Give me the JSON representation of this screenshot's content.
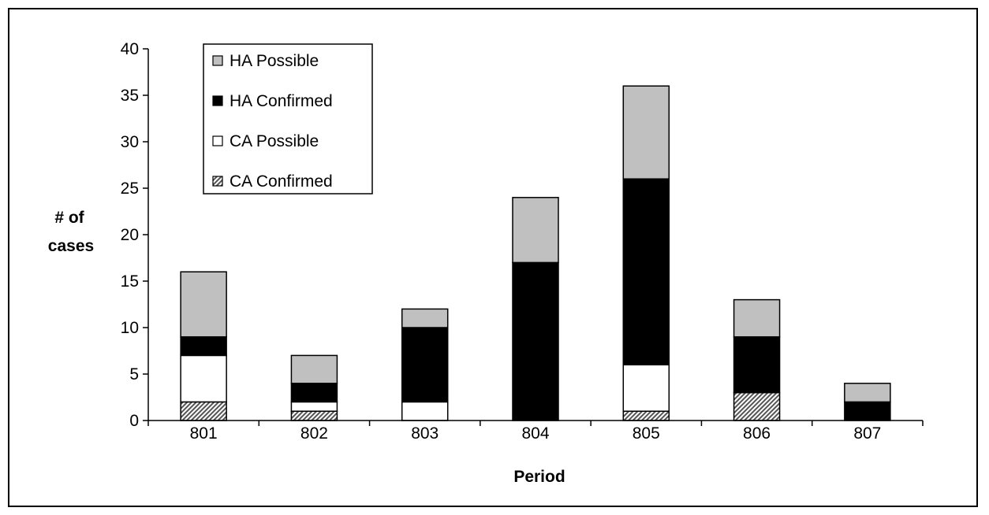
{
  "chart_data": {
    "type": "bar",
    "stacked": true,
    "categories": [
      "801",
      "802",
      "803",
      "804",
      "805",
      "806",
      "807"
    ],
    "series": [
      {
        "name": "CA Confirmed",
        "values": [
          2,
          1,
          0,
          0,
          1,
          3,
          0
        ],
        "color": "#a0a0a0",
        "pattern": "hatch"
      },
      {
        "name": "CA Possible",
        "values": [
          5,
          1,
          2,
          0,
          5,
          0,
          0
        ],
        "color": "#ffffff"
      },
      {
        "name": "HA Confirmed",
        "values": [
          2,
          2,
          8,
          17,
          20,
          6,
          2
        ],
        "color": "#000000"
      },
      {
        "name": "HA Possible",
        "values": [
          7,
          3,
          2,
          7,
          10,
          4,
          2
        ],
        "color": "#c0c0c0"
      }
    ],
    "legend_order": [
      "HA Possible",
      "HA Confirmed",
      "CA Possible",
      "CA Confirmed"
    ],
    "legend_position": "top-left",
    "xlabel": "Period",
    "ylabel_lines": [
      "# of",
      "cases"
    ],
    "ylim": [
      0,
      40
    ],
    "yticks": [
      "0",
      "5",
      "10",
      "15",
      "20",
      "25",
      "30",
      "35",
      "40"
    ],
    "grid": false
  }
}
